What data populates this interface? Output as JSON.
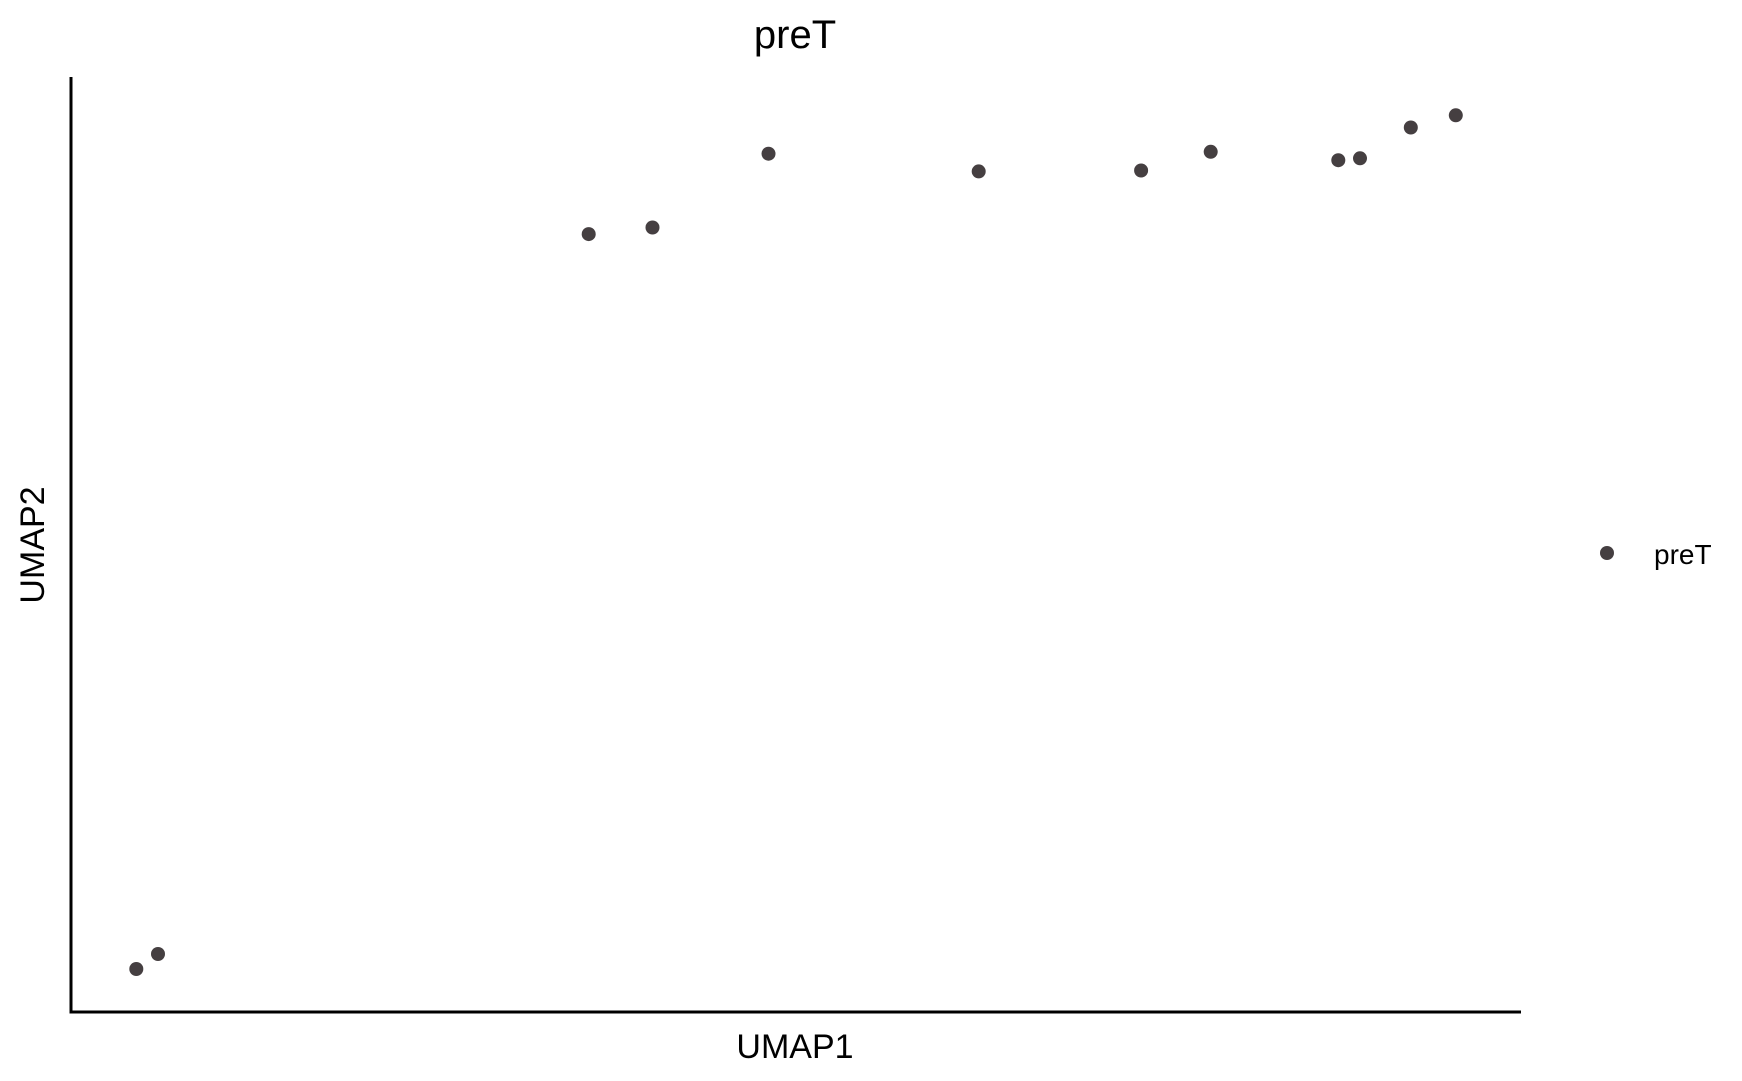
{
  "chart_data": {
    "type": "scatter",
    "title": "preT",
    "xlabel": "UMAP1",
    "ylabel": "UMAP2",
    "xlim": [
      0,
      100
    ],
    "ylim": [
      0,
      100
    ],
    "x_ticks_shown": false,
    "y_ticks_shown": false,
    "grid": false,
    "legend": "right",
    "series": [
      {
        "name": "preT",
        "color": "#453f41",
        "points": [
          {
            "x": 4.5,
            "y": 4.6
          },
          {
            "x": 6.0,
            "y": 6.2
          },
          {
            "x": 35.7,
            "y": 83.2
          },
          {
            "x": 40.1,
            "y": 83.9
          },
          {
            "x": 48.1,
            "y": 91.8
          },
          {
            "x": 62.6,
            "y": 89.9
          },
          {
            "x": 73.8,
            "y": 90.0
          },
          {
            "x": 78.6,
            "y": 92.0
          },
          {
            "x": 87.4,
            "y": 91.1
          },
          {
            "x": 88.9,
            "y": 91.3
          },
          {
            "x": 92.4,
            "y": 94.6
          },
          {
            "x": 95.5,
            "y": 95.9
          }
        ]
      }
    ]
  }
}
